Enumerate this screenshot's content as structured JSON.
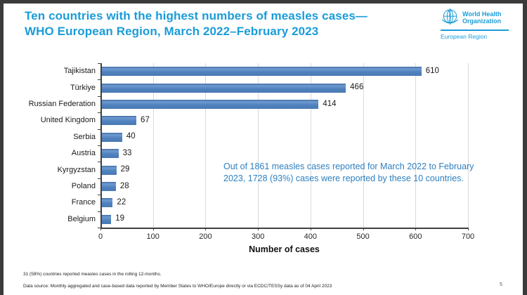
{
  "header": {
    "title_line1": "Ten countries with the highest numbers of measles cases—",
    "title_line2": "WHO European Region, March 2022–February 2023",
    "logo": {
      "org_line1": "World Health",
      "org_line2": "Organization",
      "region": "European Region"
    }
  },
  "chart_data": {
    "type": "bar",
    "orientation": "horizontal",
    "categories": [
      "Tajikistan",
      "Türkiye",
      "Russian Federation",
      "United Kingdom",
      "Serbia",
      "Austria",
      "Kyrgyzstan",
      "Poland",
      "France",
      "Belgium"
    ],
    "values": [
      610,
      466,
      414,
      67,
      40,
      33,
      29,
      28,
      22,
      19
    ],
    "value_labels": [
      "610",
      "466",
      "414",
      "67",
      "40",
      "33",
      "29",
      "28",
      "22",
      "19"
    ],
    "xlabel": "Number of cases",
    "xlim": [
      0,
      700
    ],
    "xticks": [
      0,
      100,
      200,
      300,
      400,
      500,
      600,
      700
    ],
    "grid": true,
    "legend": "none",
    "annotation": "Out of 1861 measles cases reported for March 2022 to February 2023, 1728 (93%) cases were reported by these 10 countries."
  },
  "colors": {
    "title_blue": "#1a9cd8",
    "annotation_blue": "#2e80c0",
    "bar_blue": "#4e81bd",
    "gridline_gray": "#dadada",
    "axis_gray": "#404040",
    "frame_border": "#3b3b3b"
  },
  "footer": {
    "note": "31 (58%) countries reported measles cases in the rolling 12-months.",
    "data_source": "Data source: Monthly aggregated and case-based data reported by Member States to WHO/Europe directly or via ECDC/TESSy data as of 04 April 2023",
    "page_number": "5"
  }
}
